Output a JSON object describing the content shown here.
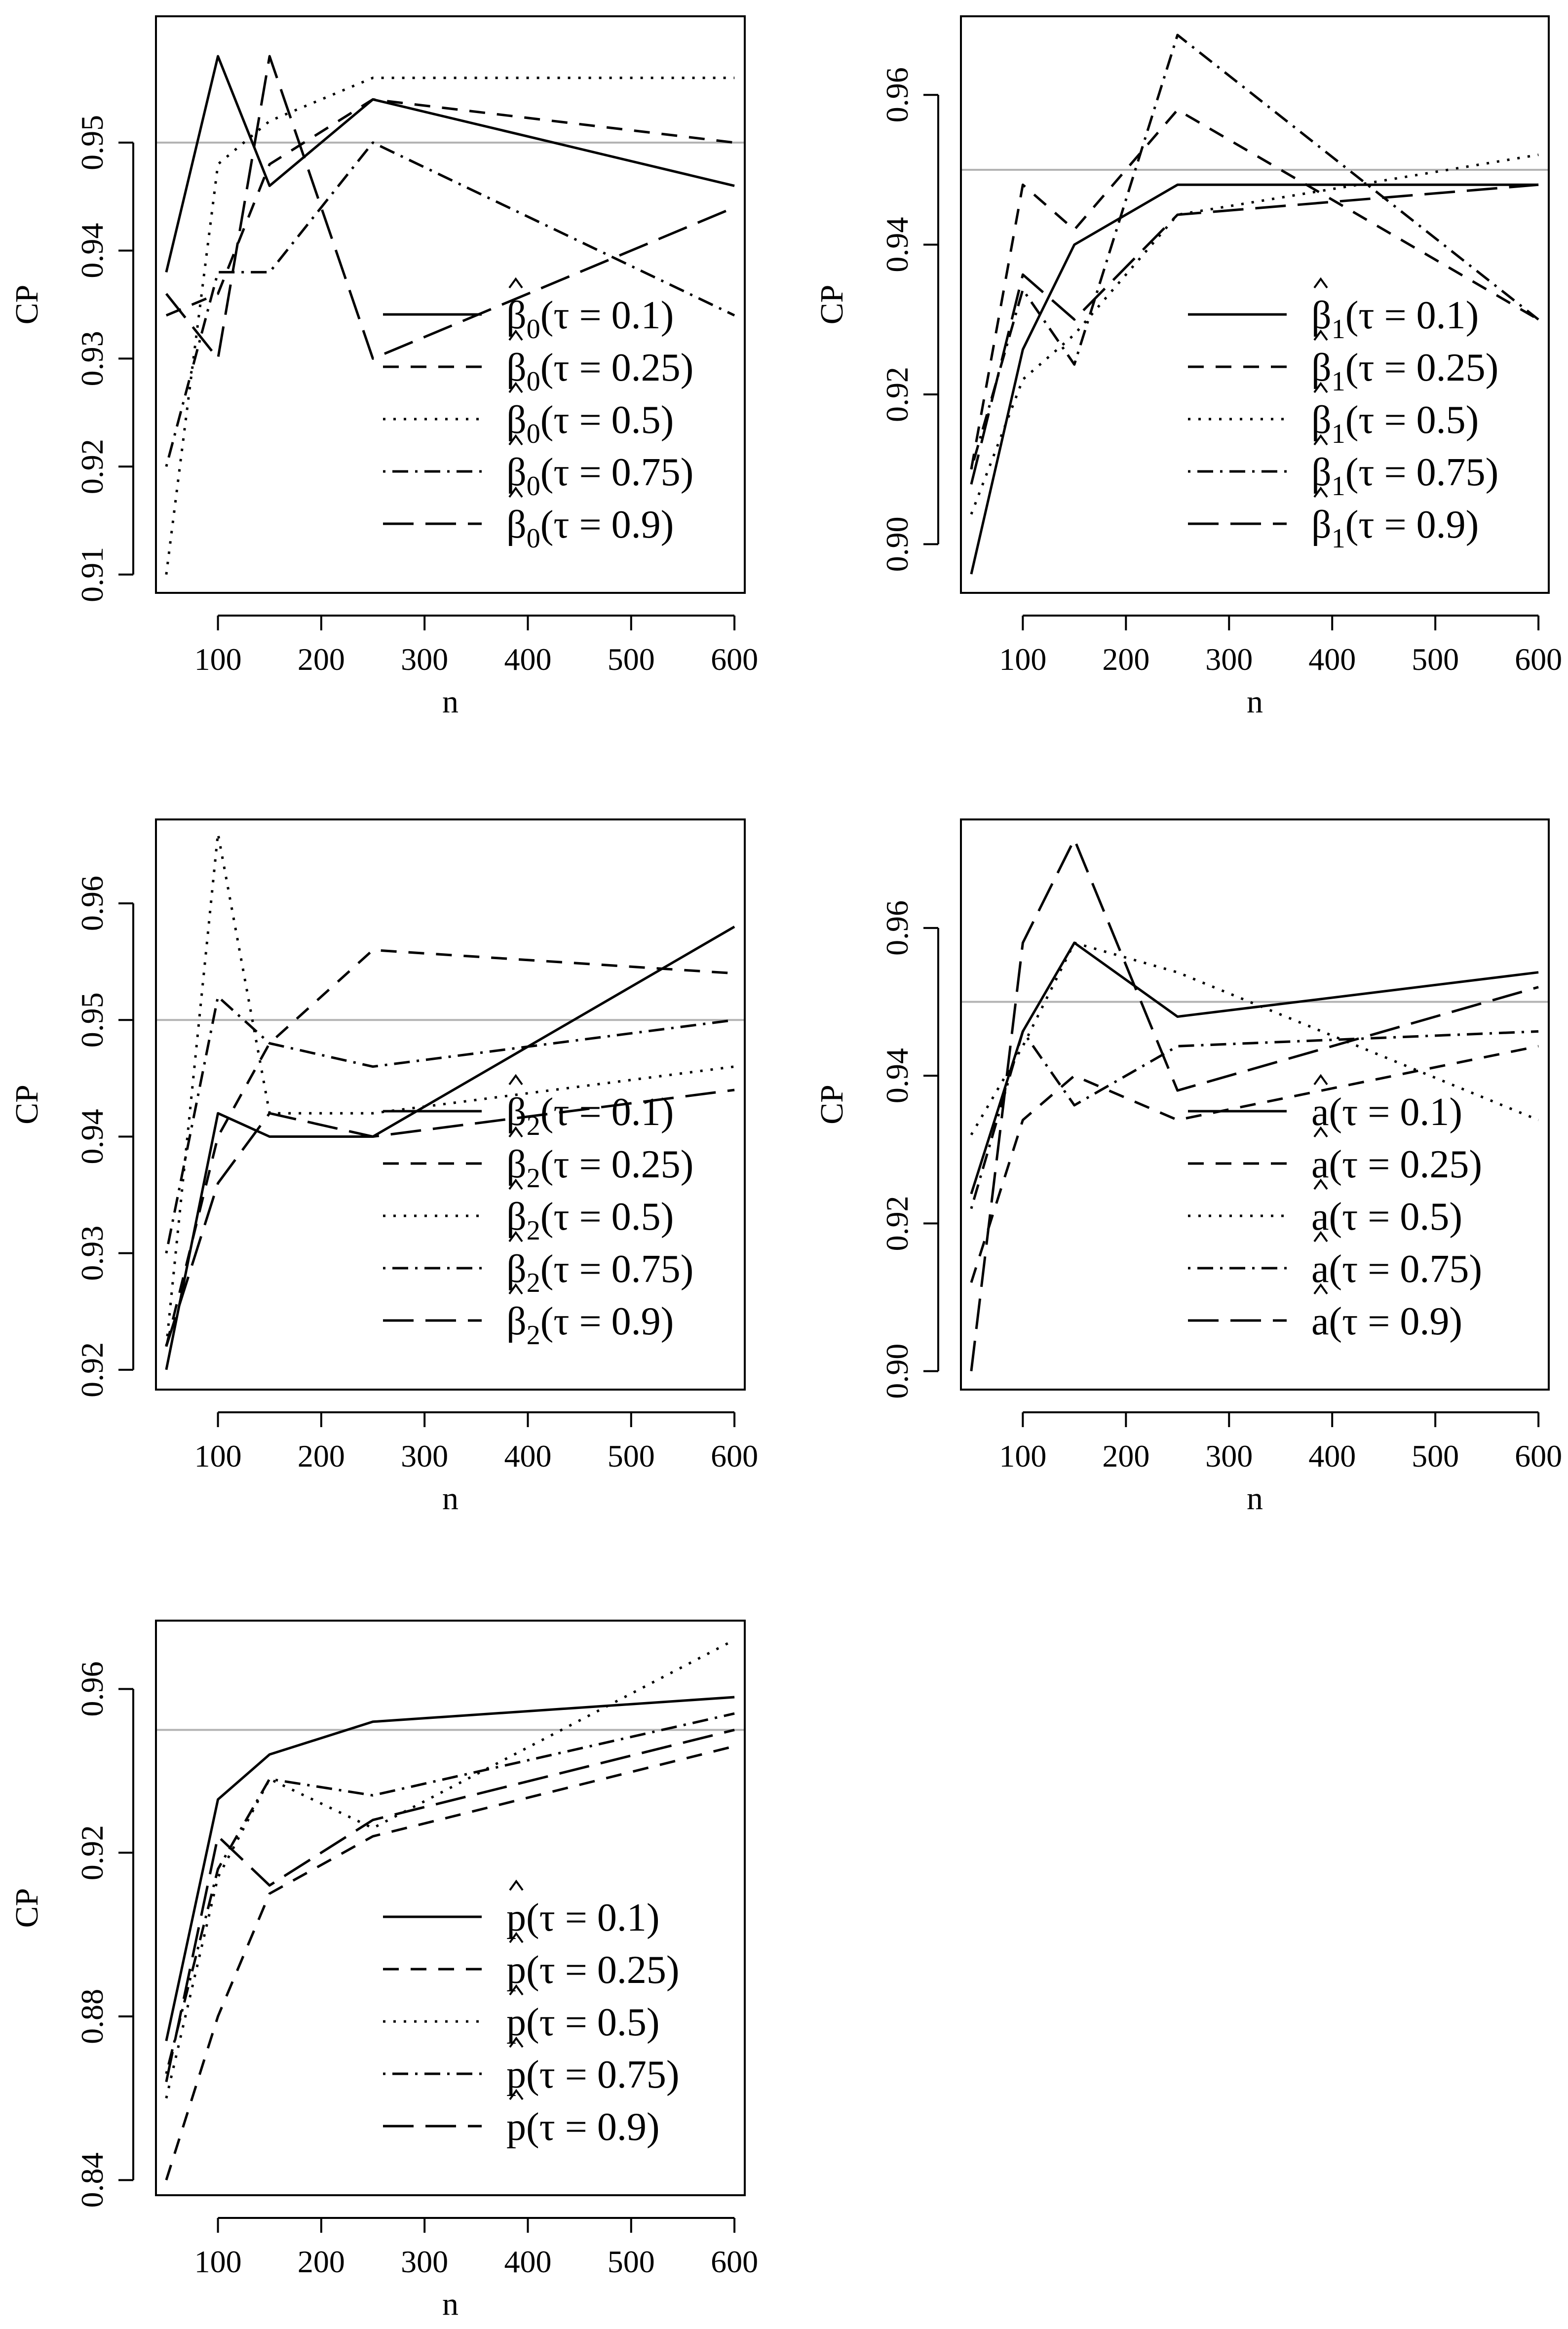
{
  "chart_data": [
    {
      "type": "line",
      "xlabel": "n",
      "ylabel": "CP",
      "xlim": [
        40,
        610
      ],
      "ylim": [
        0.9083,
        0.9617
      ],
      "xticks": [
        100,
        200,
        300,
        400,
        500,
        600
      ],
      "yticks": [
        0.91,
        0.92,
        0.93,
        0.94,
        0.95
      ],
      "ytick_labels": [
        "0.91",
        "0.92",
        "0.93",
        "0.94",
        "0.95"
      ],
      "reference_line": 0.95,
      "legend_position": "bottom-right",
      "x": [
        50,
        100,
        150,
        250,
        600
      ],
      "series": [
        {
          "param": "β",
          "sub": "0",
          "tau": "(τ = 0.1)",
          "style": "solid",
          "values": [
            0.938,
            0.958,
            0.946,
            0.954,
            0.946
          ]
        },
        {
          "param": "β",
          "sub": "0",
          "tau": "(τ = 0.25)",
          "style": "dashed",
          "values": [
            0.934,
            0.936,
            0.948,
            0.954,
            0.95
          ]
        },
        {
          "param": "β",
          "sub": "0",
          "tau": "(τ = 0.5)",
          "style": "dotted",
          "values": [
            0.91,
            0.948,
            0.952,
            0.956,
            0.956
          ]
        },
        {
          "param": "β",
          "sub": "0",
          "tau": "(τ = 0.75)",
          "style": "dotdash",
          "values": [
            0.92,
            0.938,
            0.938,
            0.95,
            0.934
          ]
        },
        {
          "param": "β",
          "sub": "0",
          "tau": "(τ = 0.9)",
          "style": "longdash",
          "values": [
            0.936,
            0.93,
            0.958,
            0.93,
            0.944
          ]
        }
      ]
    },
    {
      "type": "line",
      "xlabel": "n",
      "ylabel": "CP",
      "xlim": [
        40,
        610
      ],
      "ylim": [
        0.8935,
        0.9705
      ],
      "xticks": [
        100,
        200,
        300,
        400,
        500,
        600
      ],
      "yticks": [
        0.9,
        0.92,
        0.94,
        0.96
      ],
      "ytick_labels": [
        "0.90",
        "0.92",
        "0.94",
        "0.96"
      ],
      "reference_line": 0.95,
      "legend_position": "bottom-right",
      "x": [
        50,
        100,
        150,
        250,
        600
      ],
      "series": [
        {
          "param": "β",
          "sub": "1",
          "tau": "(τ = 0.1)",
          "style": "solid",
          "values": [
            0.896,
            0.926,
            0.94,
            0.948,
            0.948
          ]
        },
        {
          "param": "β",
          "sub": "1",
          "tau": "(τ = 0.25)",
          "style": "dashed",
          "values": [
            0.91,
            0.948,
            0.942,
            0.958,
            0.93
          ]
        },
        {
          "param": "β",
          "sub": "1",
          "tau": "(τ = 0.5)",
          "style": "dotted",
          "values": [
            0.904,
            0.922,
            0.928,
            0.944,
            0.952
          ]
        },
        {
          "param": "β",
          "sub": "1",
          "tau": "(τ = 0.75)",
          "style": "dotdash",
          "values": [
            0.91,
            0.934,
            0.924,
            0.968,
            0.93
          ]
        },
        {
          "param": "β",
          "sub": "1",
          "tau": "(τ = 0.9)",
          "style": "longdash",
          "values": [
            0.908,
            0.936,
            0.93,
            0.944,
            0.948
          ]
        }
      ]
    },
    {
      "type": "line",
      "xlabel": "n",
      "ylabel": "CP",
      "xlim": [
        40,
        610
      ],
      "ylim": [
        0.9183,
        0.9672
      ],
      "xticks": [
        100,
        200,
        300,
        400,
        500,
        600
      ],
      "yticks": [
        0.92,
        0.93,
        0.94,
        0.95,
        0.96
      ],
      "ytick_labels": [
        "0.92",
        "0.93",
        "0.94",
        "0.95",
        "0.96"
      ],
      "reference_line": 0.95,
      "legend_position": "bottom-right",
      "x": [
        50,
        100,
        150,
        250,
        600
      ],
      "series": [
        {
          "param": "β",
          "sub": "2",
          "tau": "(τ = 0.1)",
          "style": "solid",
          "values": [
            0.92,
            0.942,
            0.94,
            0.94,
            0.958
          ]
        },
        {
          "param": "β",
          "sub": "2",
          "tau": "(τ = 0.25)",
          "style": "dashed",
          "values": [
            0.922,
            0.94,
            0.948,
            0.956,
            0.954
          ]
        },
        {
          "param": "β",
          "sub": "2",
          "tau": "(τ = 0.5)",
          "style": "dotted",
          "values": [
            0.922,
            0.966,
            0.942,
            0.942,
            0.946
          ]
        },
        {
          "param": "β",
          "sub": "2",
          "tau": "(τ = 0.75)",
          "style": "dotdash",
          "values": [
            0.93,
            0.952,
            0.948,
            0.946,
            0.95
          ]
        },
        {
          "param": "β",
          "sub": "2",
          "tau": "(τ = 0.9)",
          "style": "longdash",
          "values": [
            0.922,
            0.936,
            0.942,
            0.94,
            0.944
          ]
        }
      ]
    },
    {
      "type": "line",
      "xlabel": "n",
      "ylabel": "CP",
      "xlim": [
        40,
        610
      ],
      "ylim": [
        0.8975,
        0.9747
      ],
      "xticks": [
        100,
        200,
        300,
        400,
        500,
        600
      ],
      "yticks": [
        0.9,
        0.92,
        0.94,
        0.96
      ],
      "ytick_labels": [
        "0.90",
        "0.92",
        "0.94",
        "0.96"
      ],
      "reference_line": 0.95,
      "legend_position": "bottom-right",
      "x": [
        50,
        100,
        150,
        250,
        600
      ],
      "series": [
        {
          "param": "a",
          "sub": "",
          "tau": "(τ = 0.1)",
          "style": "solid",
          "values": [
            0.924,
            0.946,
            0.958,
            0.948,
            0.954
          ]
        },
        {
          "param": "a",
          "sub": "",
          "tau": "(τ = 0.25)",
          "style": "dashed",
          "values": [
            0.912,
            0.934,
            0.94,
            0.934,
            0.944
          ]
        },
        {
          "param": "a",
          "sub": "",
          "tau": "(τ = 0.5)",
          "style": "dotted",
          "values": [
            0.932,
            0.944,
            0.958,
            0.954,
            0.934
          ]
        },
        {
          "param": "a",
          "sub": "",
          "tau": "(τ = 0.75)",
          "style": "dotdash",
          "values": [
            0.922,
            0.946,
            0.936,
            0.944,
            0.946
          ]
        },
        {
          "param": "a",
          "sub": "",
          "tau": "(τ = 0.9)",
          "style": "longdash",
          "values": [
            0.9,
            0.958,
            0.972,
            0.938,
            0.952
          ]
        }
      ]
    },
    {
      "type": "line",
      "xlabel": "n",
      "ylabel": "CP",
      "xlim": [
        40,
        610
      ],
      "ylim": [
        0.8363,
        0.9767
      ],
      "xticks": [
        100,
        200,
        300,
        400,
        500,
        600
      ],
      "yticks": [
        0.84,
        0.88,
        0.92,
        0.96
      ],
      "ytick_labels": [
        "0.84",
        "0.88",
        "0.92",
        "0.96"
      ],
      "reference_line": 0.95,
      "legend_position": "bottom-right",
      "x": [
        50,
        100,
        150,
        250,
        600
      ],
      "series": [
        {
          "param": "p",
          "sub": "",
          "tau": "(τ = 0.1)",
          "style": "solid",
          "values": [
            0.874,
            0.933,
            0.944,
            0.952,
            0.958
          ]
        },
        {
          "param": "p",
          "sub": "",
          "tau": "(τ = 0.25)",
          "style": "dashed",
          "values": [
            0.84,
            0.88,
            0.91,
            0.924,
            0.946
          ]
        },
        {
          "param": "p",
          "sub": "",
          "tau": "(τ = 0.5)",
          "style": "dotted",
          "values": [
            0.86,
            0.914,
            0.938,
            0.926,
            0.972
          ]
        },
        {
          "param": "p",
          "sub": "",
          "tau": "(τ = 0.75)",
          "style": "dotdash",
          "values": [
            0.866,
            0.916,
            0.938,
            0.934,
            0.954
          ]
        },
        {
          "param": "p",
          "sub": "",
          "tau": "(τ = 0.9)",
          "style": "longdash",
          "values": [
            0.864,
            0.924,
            0.912,
            0.928,
            0.95
          ]
        }
      ]
    }
  ]
}
